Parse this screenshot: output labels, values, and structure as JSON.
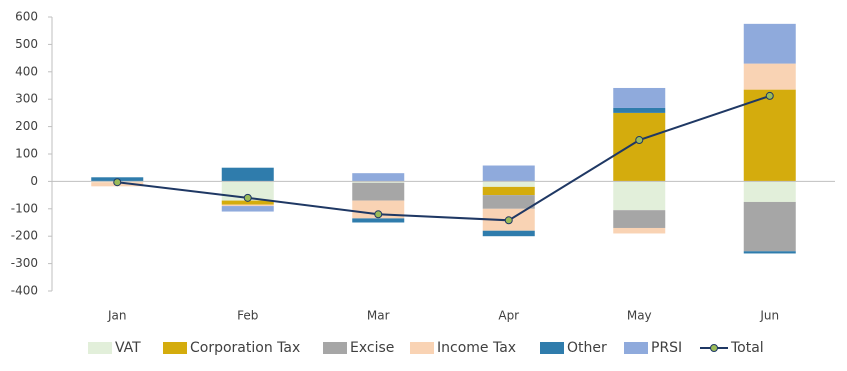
{
  "chart_data": {
    "type": "bar",
    "stacked": true,
    "categories": [
      "Jan",
      "Feb",
      "Mar",
      "Apr",
      "May",
      "Jun"
    ],
    "ylim": [
      -400,
      600
    ],
    "yticks": [
      -400,
      -300,
      -200,
      -100,
      0,
      100,
      200,
      300,
      400,
      500,
      600
    ],
    "series": [
      {
        "name": "VAT",
        "color": "#e2efda",
        "values": [
          -3,
          -70,
          -5,
          -20,
          -105,
          -75
        ]
      },
      {
        "name": "Corporation Tax",
        "color": "#d4ac0d",
        "values": [
          0,
          -15,
          0,
          -30,
          250,
          335
        ]
      },
      {
        "name": "Excise",
        "color": "#a6a6a6",
        "values": [
          0,
          0,
          -65,
          -50,
          -65,
          -180
        ]
      },
      {
        "name": "Income Tax",
        "color": "#f9d3b4",
        "values": [
          -15,
          -5,
          -65,
          -80,
          -20,
          95
        ]
      },
      {
        "name": "Other",
        "color": "#2f7cac",
        "values": [
          15,
          50,
          -15,
          -20,
          18,
          -8
        ]
      },
      {
        "name": "PRSI",
        "color": "#8faadc",
        "values": [
          0,
          -20,
          30,
          58,
          73,
          145
        ]
      },
      {
        "name": "Total",
        "type": "line",
        "color": "#1f3864",
        "marker_color": "#9bbb59",
        "values": [
          -3,
          -60,
          -120,
          -142,
          151,
          312
        ]
      }
    ]
  }
}
